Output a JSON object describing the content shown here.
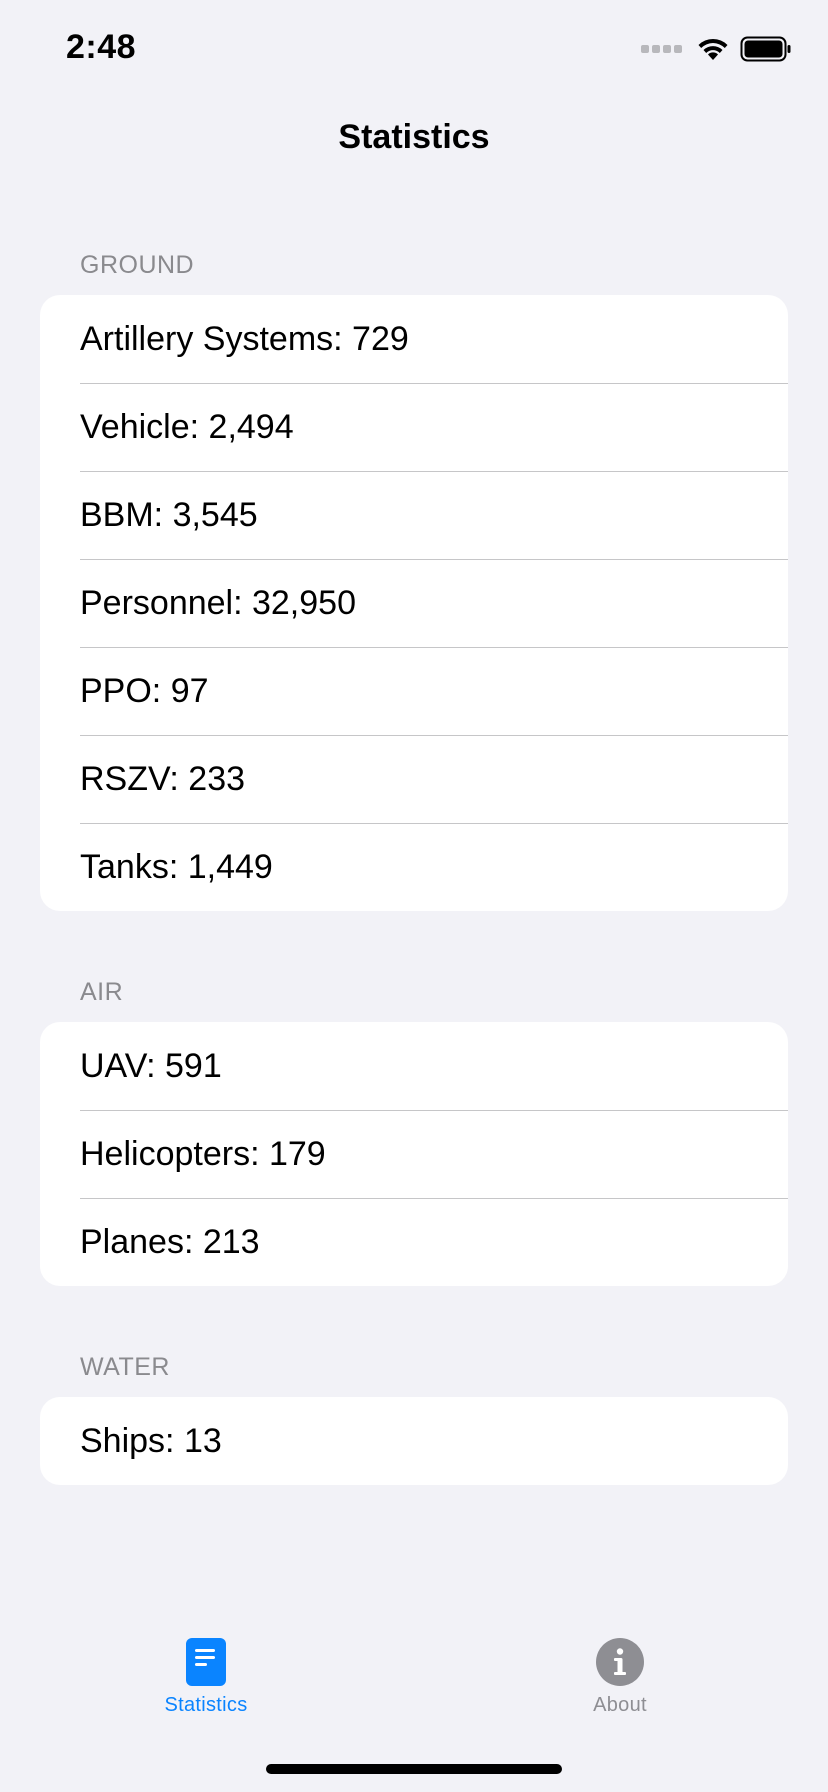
{
  "status_bar": {
    "time": "2:48"
  },
  "nav": {
    "title": "Statistics"
  },
  "sections": {
    "ground": {
      "header": "GROUND",
      "rows": [
        "Artillery Systems: 729",
        "Vehicle: 2,494",
        "BBM: 3,545",
        "Personnel: 32,950",
        "PPO: 97",
        "RSZV: 233",
        "Tanks: 1,449"
      ]
    },
    "air": {
      "header": "AIR",
      "rows": [
        "UAV: 591",
        "Helicopters: 179",
        "Planes: 213"
      ]
    },
    "water": {
      "header": "WATER",
      "rows": [
        "Ships: 13"
      ]
    }
  },
  "tabbar": {
    "tabs": [
      {
        "label": "Statistics",
        "icon": "document-icon",
        "selected": true
      },
      {
        "label": "About",
        "icon": "info-icon",
        "selected": false
      }
    ]
  },
  "colors": {
    "accent": "#0a84ff",
    "inactive": "#8e8e93",
    "background": "#f2f2f7",
    "separator": "#c6c6c8"
  }
}
